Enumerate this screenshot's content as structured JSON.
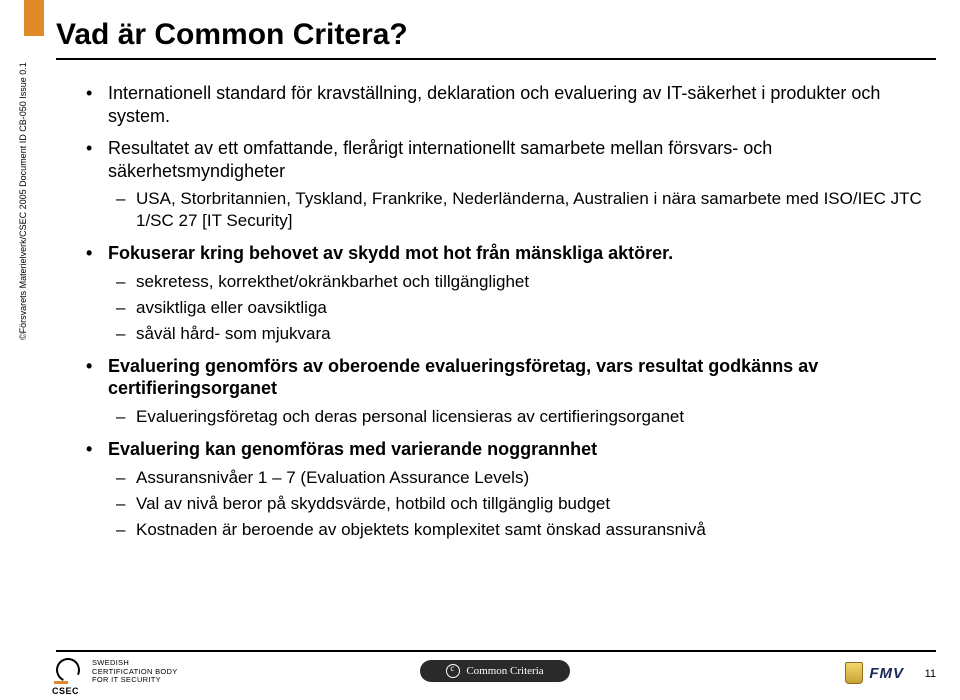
{
  "colors": {
    "accent_orange": "#e08a2a",
    "text": "#000000",
    "background": "#ffffff",
    "fmv_blue": "#1a2a5a",
    "badge_bg": "#2a2a2a"
  },
  "title": "Vad är Common Critera?",
  "side_copyright": "©Försvarets Materielverk/CSEC 2005 Document ID CB-050   Issue 0.1",
  "bullets": [
    {
      "text": "Internationell standard för kravställning, deklaration och evaluering av IT-säkerhet i produkter och system.",
      "bold": false
    },
    {
      "text": "Resultatet av ett omfattande, flerårigt internationellt samarbete mellan försvars- och säkerhetsmyndigheter",
      "bold": false,
      "sub": [
        "USA, Storbritannien, Tyskland, Frankrike, Nederländerna, Australien i nära samarbete med ISO/IEC JTC 1/SC 27 [IT Security]"
      ]
    },
    {
      "text": "Fokuserar kring behovet av skydd mot hot från mänskliga aktörer.",
      "bold": true,
      "sub": [
        "sekretess, korrekthet/okränkbarhet och tillgänglighet",
        "avsiktliga eller oavsiktliga",
        "såväl hård- som mjukvara"
      ]
    },
    {
      "text": "Evaluering genomförs av oberoende evalueringsföretag, vars resultat godkänns av certifieringsorganet",
      "bold": true,
      "sub": [
        "Evalueringsföretag och deras personal licensieras av certifieringsorganet"
      ]
    },
    {
      "text": "Evaluering kan genomföras med varierande noggrannhet",
      "bold": true,
      "sub": [
        "Assuransnivåer 1 – 7 (Evaluation Assurance Levels)",
        "Val av nivå beror på skyddsvärde, hotbild och tillgänglig budget",
        "Kostnaden är beroende av objektets komplexitet samt önskad assuransnivå"
      ]
    }
  ],
  "footer": {
    "csec_lines": [
      "SWEDISH",
      "CERTIFICATION BODY",
      "FOR IT SECURITY"
    ],
    "csec_label": "CSEC",
    "cc_badge": "Common Criteria",
    "fmv": "FMV",
    "page": "11"
  }
}
